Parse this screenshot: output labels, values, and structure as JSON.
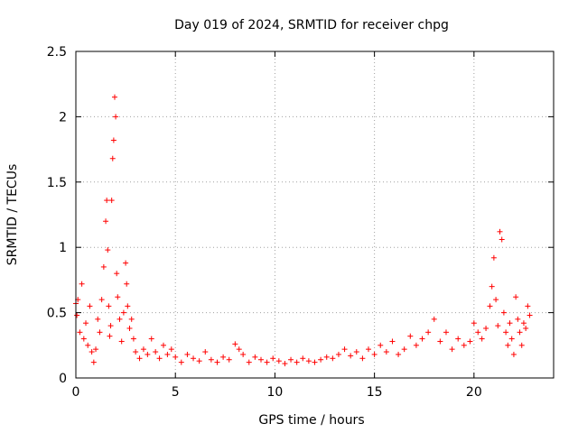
{
  "chart_data": {
    "type": "scatter",
    "title": "Day 019 of 2024, SRMTID for receiver chpg",
    "xlabel": "GPS time / hours",
    "ylabel": "SRMTID / TECUs",
    "xlim": [
      0,
      24
    ],
    "ylim": [
      0,
      2.5
    ],
    "xticks": [
      0,
      5,
      10,
      15,
      20
    ],
    "xtick_labels": [
      "0",
      "5",
      "10",
      "15",
      "20"
    ],
    "yticks": [
      0,
      0.5,
      1,
      1.5,
      2,
      2.5
    ],
    "ytick_labels": [
      "0",
      "0.5",
      "1",
      "1.5",
      "2",
      "2.5"
    ],
    "grid": true,
    "marker": "+",
    "color": "#ff0000",
    "series": [
      {
        "name": "SRMTID",
        "x": [
          0.0,
          0.05,
          0.1,
          0.2,
          0.3,
          0.4,
          0.5,
          0.6,
          0.7,
          0.8,
          0.9,
          1.0,
          1.1,
          1.2,
          1.3,
          1.4,
          1.5,
          1.55,
          1.6,
          1.65,
          1.7,
          1.75,
          1.8,
          1.85,
          1.9,
          1.95,
          2.0,
          2.05,
          2.1,
          2.2,
          2.3,
          2.4,
          2.5,
          2.55,
          2.6,
          2.7,
          2.8,
          2.9,
          3.0,
          3.2,
          3.4,
          3.6,
          3.8,
          4.0,
          4.2,
          4.4,
          4.6,
          4.8,
          5.0,
          5.3,
          5.6,
          5.9,
          6.2,
          6.5,
          6.8,
          7.1,
          7.4,
          7.7,
          8.0,
          8.2,
          8.4,
          8.7,
          9.0,
          9.3,
          9.6,
          9.9,
          10.2,
          10.5,
          10.8,
          11.1,
          11.4,
          11.7,
          12.0,
          12.3,
          12.6,
          12.9,
          13.2,
          13.5,
          13.8,
          14.1,
          14.4,
          14.7,
          15.0,
          15.3,
          15.6,
          15.9,
          16.2,
          16.5,
          16.8,
          17.1,
          17.4,
          17.7,
          18.0,
          18.3,
          18.6,
          18.9,
          19.2,
          19.5,
          19.8,
          20.0,
          20.2,
          20.4,
          20.6,
          20.8,
          20.9,
          21.0,
          21.1,
          21.2,
          21.3,
          21.4,
          21.5,
          21.6,
          21.7,
          21.8,
          21.9,
          22.0,
          22.1,
          22.2,
          22.3,
          22.4,
          22.5,
          22.6,
          22.7,
          22.8
        ],
        "y": [
          0.57,
          0.48,
          0.6,
          0.35,
          0.72,
          0.3,
          0.42,
          0.25,
          0.55,
          0.2,
          0.12,
          0.22,
          0.45,
          0.35,
          0.6,
          0.85,
          1.2,
          1.36,
          0.98,
          0.55,
          0.32,
          0.4,
          1.36,
          1.68,
          1.82,
          2.15,
          2.0,
          0.8,
          0.62,
          0.45,
          0.28,
          0.5,
          0.88,
          0.72,
          0.55,
          0.38,
          0.45,
          0.3,
          0.2,
          0.15,
          0.22,
          0.18,
          0.3,
          0.2,
          0.15,
          0.25,
          0.18,
          0.22,
          0.16,
          0.12,
          0.18,
          0.15,
          0.13,
          0.2,
          0.14,
          0.12,
          0.16,
          0.14,
          0.26,
          0.22,
          0.18,
          0.12,
          0.16,
          0.14,
          0.12,
          0.15,
          0.13,
          0.11,
          0.14,
          0.12,
          0.15,
          0.13,
          0.12,
          0.14,
          0.16,
          0.15,
          0.18,
          0.22,
          0.17,
          0.2,
          0.15,
          0.22,
          0.18,
          0.25,
          0.2,
          0.28,
          0.18,
          0.22,
          0.32,
          0.25,
          0.3,
          0.35,
          0.45,
          0.28,
          0.35,
          0.22,
          0.3,
          0.25,
          0.28,
          0.42,
          0.35,
          0.3,
          0.38,
          0.55,
          0.7,
          0.92,
          0.6,
          0.4,
          1.12,
          1.06,
          0.5,
          0.35,
          0.25,
          0.42,
          0.3,
          0.18,
          0.62,
          0.45,
          0.35,
          0.25,
          0.42,
          0.38,
          0.55,
          0.48
        ]
      }
    ]
  }
}
